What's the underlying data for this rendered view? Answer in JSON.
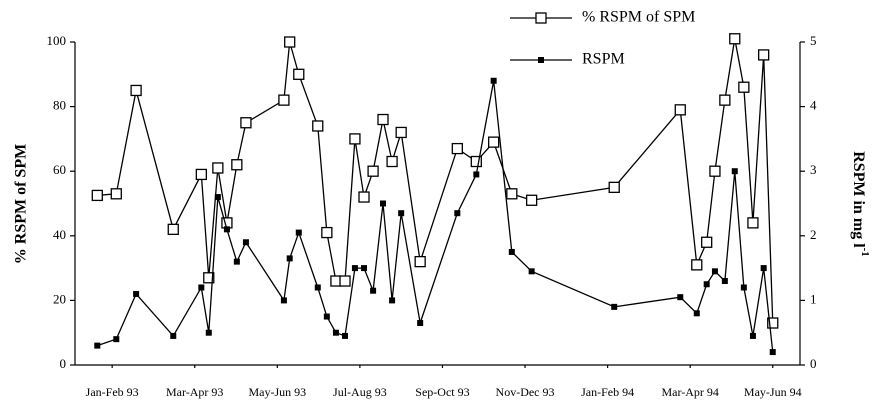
{
  "chart_data": {
    "type": "line",
    "ylabel": "% RSPM of SPM",
    "y2label": "RSPM in mg l",
    "y2label_sup": "-1",
    "xlim": [
      -0.45,
      8.33
    ],
    "xticks": [
      {
        "value": 0,
        "label": "Jan-Feb 93"
      },
      {
        "value": 1,
        "label": "Mar-Apr 93"
      },
      {
        "value": 2,
        "label": "May-Jun 93"
      },
      {
        "value": 3,
        "label": "Jul-Aug 93"
      },
      {
        "value": 4,
        "label": "Sep-Oct 93"
      },
      {
        "value": 5,
        "label": "Nov-Dec 93"
      },
      {
        "value": 6,
        "label": "Jan-Feb 94"
      },
      {
        "value": 7,
        "label": "Mar-Apr 94"
      },
      {
        "value": 8,
        "label": "May-Jun 94"
      }
    ],
    "ylim": [
      0,
      100
    ],
    "yticks": [
      0,
      20,
      40,
      60,
      80,
      100
    ],
    "y2lim": [
      0,
      5
    ],
    "y2ticks": [
      0,
      1,
      2,
      3,
      4,
      5
    ],
    "legend": "top-right",
    "x": [
      -0.18,
      0.05,
      0.29,
      0.74,
      1.08,
      1.17,
      1.28,
      1.39,
      1.51,
      1.62,
      2.08,
      2.15,
      2.26,
      2.49,
      2.6,
      2.71,
      2.82,
      2.94,
      3.05,
      3.16,
      3.28,
      3.39,
      3.5,
      3.73,
      4.18,
      4.41,
      4.62,
      4.84,
      5.08,
      6.08,
      6.88,
      7.08,
      7.2,
      7.3,
      7.42,
      7.54,
      7.65,
      7.76,
      7.89,
      8.0
    ],
    "series": [
      {
        "name": "% RSPM of SPM",
        "color": "#000000",
        "marker": "open-square",
        "values": [
          52.5,
          53,
          85,
          42,
          59,
          27,
          61,
          44,
          62,
          75,
          82,
          100,
          90,
          74,
          41,
          26,
          26,
          70,
          52,
          60,
          76,
          63,
          72,
          32,
          67,
          63,
          69,
          53,
          51,
          55,
          79,
          31,
          38,
          60,
          82,
          101,
          86,
          44,
          96,
          13
        ]
      },
      {
        "name": "RSPM",
        "color": "#000000",
        "marker": "filled-square",
        "axis": "y2",
        "values": [
          0.3,
          0.4,
          1.1,
          0.45,
          1.2,
          0.5,
          2.6,
          2.1,
          1.6,
          1.9,
          1.0,
          1.65,
          2.05,
          1.2,
          0.75,
          0.5,
          0.45,
          1.5,
          1.5,
          1.15,
          2.5,
          1.0,
          2.35,
          0.65,
          2.35,
          2.95,
          4.4,
          1.75,
          1.45,
          0.9,
          1.05,
          0.8,
          1.25,
          1.45,
          1.3,
          3.0,
          1.2,
          0.45,
          1.5,
          0.2
        ]
      }
    ]
  }
}
